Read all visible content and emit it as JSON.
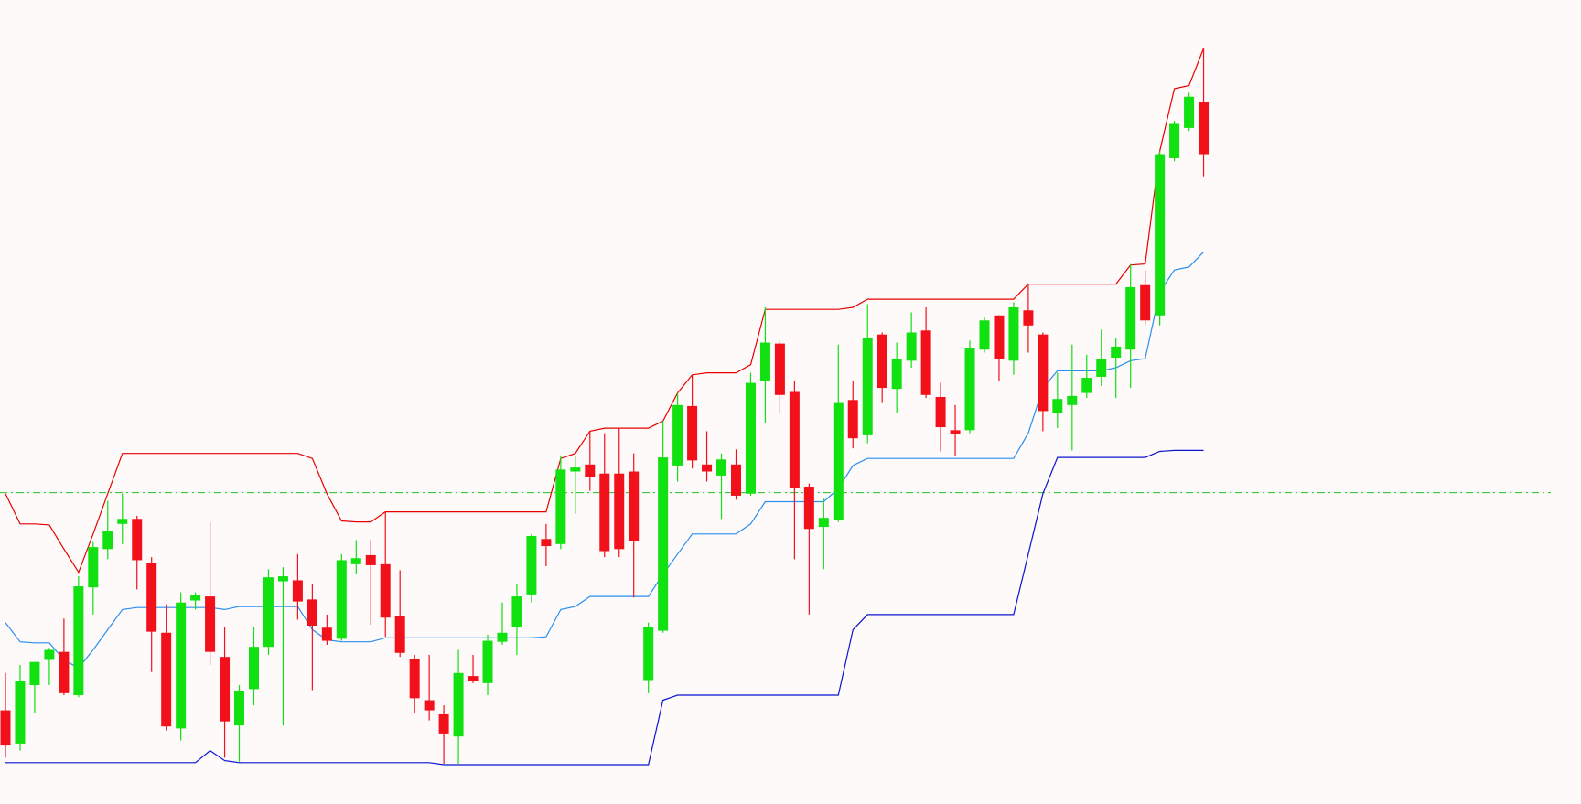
{
  "chart_data": {
    "type": "candlestick",
    "ylim": [
      2,
      800
    ],
    "up_color": "#11e011",
    "down_color": "#f2101a",
    "open": [
      95,
      62,
      120,
      145,
      153,
      110,
      217,
      255,
      280,
      285,
      241,
      172,
      77,
      204,
      208,
      148,
      80,
      116,
      158,
      223,
      224,
      205,
      177,
      166,
      240,
      249,
      240,
      189,
      146,
      105,
      91,
      69,
      129,
      122,
      163,
      178,
      210,
      265,
      260,
      332,
      339,
      330,
      330,
      332,
      125,
      174,
      338,
      397,
      339,
      328,
      339,
      310,
      422,
      459,
      411,
      317,
      277,
      284,
      403,
      368,
      468,
      414,
      442,
      472,
      406,
      373,
      373,
      453,
      487,
      442,
      492,
      468,
      390,
      398,
      410,
      426,
      445,
      453,
      517,
      487,
      643,
      673,
      699
    ],
    "high": [
      132,
      140,
      143,
      157,
      186,
      228,
      262,
      303,
      310,
      288,
      247,
      200,
      212,
      212,
      282,
      178,
      120,
      178,
      235,
      237,
      250,
      220,
      190,
      250,
      264,
      264,
      292,
      234,
      150,
      150,
      100,
      155,
      150,
      170,
      202,
      220,
      270,
      280,
      348,
      348,
      372,
      370,
      375,
      350,
      182,
      382,
      410,
      428,
      372,
      350,
      354,
      430,
      495,
      462,
      422,
      320,
      305,
      458,
      422,
      498,
      470,
      460,
      490,
      495,
      420,
      398,
      462,
      485,
      487,
      500,
      518,
      470,
      430,
      458,
      448,
      473,
      465,
      538,
      532,
      650,
      680,
      708,
      752
    ],
    "low": [
      48,
      55,
      92,
      120,
      110,
      108,
      190,
      245,
      260,
      215,
      133,
      75,
      65,
      195,
      140,
      48,
      44,
      100,
      150,
      80,
      185,
      115,
      160,
      164,
      230,
      180,
      168,
      148,
      92,
      85,
      42,
      42,
      122,
      110,
      160,
      150,
      202,
      238,
      255,
      290,
      313,
      247,
      247,
      207,
      112,
      172,
      322,
      335,
      322,
      285,
      304,
      308,
      380,
      390,
      245,
      190,
      235,
      282,
      355,
      360,
      400,
      390,
      435,
      405,
      352,
      347,
      370,
      450,
      422,
      428,
      450,
      372,
      375,
      353,
      405,
      417,
      405,
      415,
      478,
      477,
      640,
      670,
      625
    ],
    "close": [
      60,
      124,
      143,
      155,
      112,
      218,
      257,
      273,
      285,
      244,
      173,
      79,
      202,
      209,
      153,
      84,
      114,
      158,
      227,
      228,
      203,
      179,
      164,
      244,
      246,
      239,
      187,
      152,
      107,
      95,
      72,
      132,
      124,
      164,
      172,
      208,
      268,
      258,
      334,
      336,
      327,
      253,
      255,
      263,
      178,
      346,
      398,
      343,
      332,
      344,
      308,
      420,
      460,
      408,
      316,
      275,
      286,
      400,
      365,
      465,
      415,
      444,
      470,
      408,
      376,
      369,
      455,
      482,
      444,
      495,
      477,
      392,
      404,
      407,
      425,
      444,
      456,
      515,
      482,
      647,
      677,
      704,
      647
    ],
    "lines": [
      {
        "color": "#e80000",
        "values": [
          310,
          280,
          280,
          279,
          255,
          232,
          270,
          310,
          350,
          350,
          350,
          350,
          350,
          350,
          350,
          350,
          350,
          350,
          350,
          350,
          350,
          345,
          310,
          283,
          282,
          282,
          292,
          292,
          292,
          292,
          292,
          292,
          292,
          292,
          292,
          292,
          292,
          292,
          345,
          350,
          372,
          375,
          375,
          375,
          375,
          382,
          410,
          428,
          430,
          430,
          430,
          438,
          493,
          493,
          493,
          493,
          493,
          493,
          495,
          503,
          503,
          503,
          503,
          503,
          503,
          503,
          503,
          503,
          503,
          503,
          518,
          518,
          518,
          518,
          518,
          518,
          518,
          537,
          538,
          650,
          712,
          715,
          752
        ]
      },
      {
        "color": "#2a8ff0",
        "values": [
          182,
          163,
          162,
          162,
          145,
          137,
          155,
          175,
          195,
          197,
          197,
          197,
          197,
          197,
          197,
          195,
          198,
          198,
          198,
          198,
          198,
          175,
          165,
          163,
          163,
          163,
          167,
          167,
          167,
          167,
          167,
          167,
          167,
          167,
          167,
          167,
          167,
          168,
          195,
          198,
          208,
          208,
          208,
          208,
          208,
          230,
          250,
          270,
          270,
          270,
          270,
          280,
          302,
          302,
          302,
          302,
          302,
          315,
          338,
          345,
          345,
          345,
          345,
          345,
          345,
          345,
          345,
          345,
          345,
          345,
          370,
          415,
          432,
          432,
          432,
          432,
          435,
          442,
          444,
          510,
          532,
          535,
          550
        ]
      },
      {
        "color": "#0a14d0",
        "values": [
          43,
          43,
          43,
          43,
          43,
          43,
          43,
          43,
          43,
          43,
          43,
          43,
          43,
          43,
          55,
          45,
          43,
          43,
          43,
          43,
          43,
          43,
          43,
          43,
          43,
          43,
          43,
          43,
          43,
          43,
          41,
          41,
          41,
          41,
          41,
          41,
          41,
          41,
          41,
          41,
          41,
          41,
          41,
          41,
          41,
          105,
          110,
          110,
          110,
          110,
          110,
          110,
          110,
          110,
          110,
          110,
          110,
          110,
          175,
          190,
          190,
          190,
          190,
          190,
          190,
          190,
          190,
          190,
          190,
          190,
          250,
          310,
          346,
          346,
          346,
          346,
          346,
          346,
          346,
          352,
          353,
          353,
          353
        ]
      }
    ],
    "reference_line": {
      "value": 311,
      "color": "#22c022"
    }
  }
}
